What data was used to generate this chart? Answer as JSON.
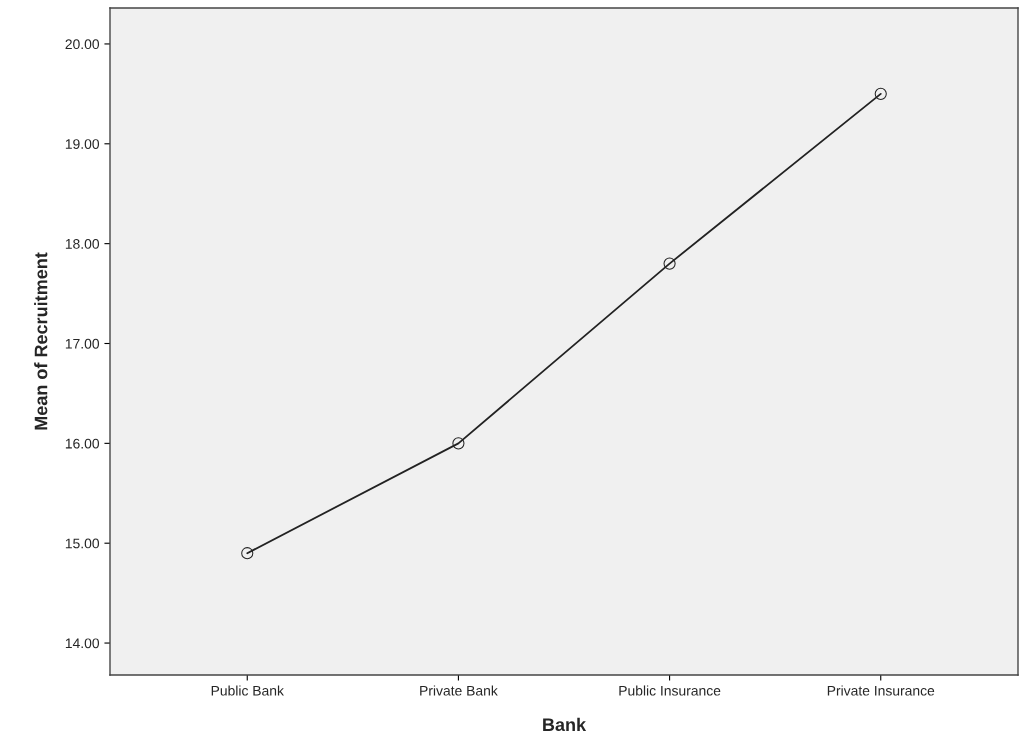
{
  "chart_data": {
    "type": "line",
    "xlabel": "Bank",
    "ylabel": "Mean of Recruitment",
    "categories": [
      "Public Bank",
      "Private Bank",
      "Public Insurance",
      "Private Insurance"
    ],
    "series": [
      {
        "color": "#222222",
        "values": [
          14.9,
          16.0,
          17.8,
          19.5
        ]
      }
    ],
    "ylim": [
      13.68,
      20.36
    ],
    "yticks": [
      {
        "value": 14,
        "label": "14.00"
      },
      {
        "value": 15,
        "label": "15.00"
      },
      {
        "value": 16,
        "label": "16.00"
      },
      {
        "value": 17,
        "label": "17.00"
      },
      {
        "value": 18,
        "label": "18.00"
      },
      {
        "value": 19,
        "label": "19.00"
      },
      {
        "value": 20,
        "label": "20.00"
      }
    ],
    "marker": "circle",
    "line_style": "solid",
    "grid": false
  }
}
